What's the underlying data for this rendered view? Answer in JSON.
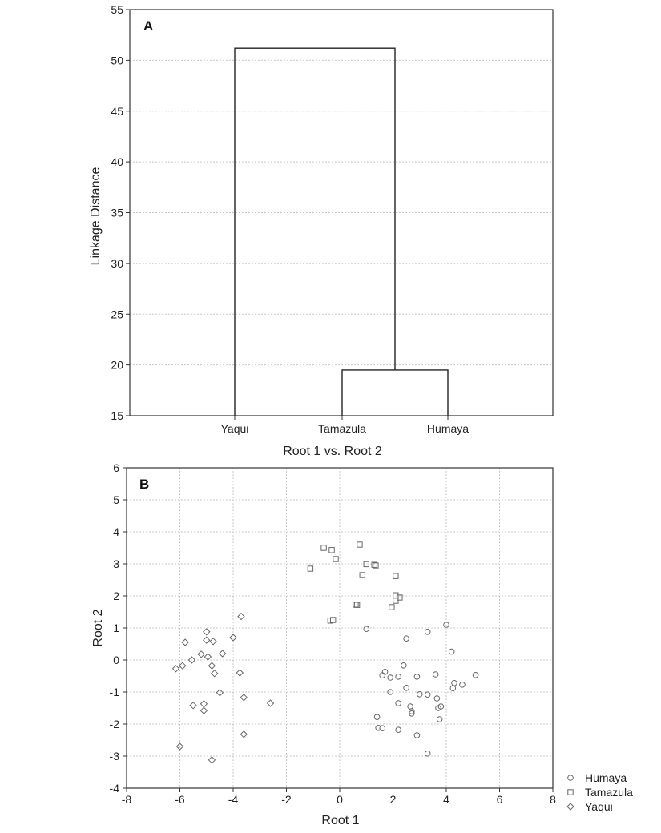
{
  "chart_data": [
    {
      "panel": "A",
      "type": "dendrogram",
      "ylabel": "Linkage Distance",
      "xlabel": "Root 1 vs. Root 2",
      "ylim": [
        15,
        55
      ],
      "yticks": [
        15,
        20,
        25,
        30,
        35,
        40,
        45,
        50,
        55
      ],
      "leaves": [
        "Yaqui",
        "Tamazula",
        "Humaya"
      ],
      "merges": [
        {
          "left": "Tamazula",
          "right": "Humaya",
          "height": 19.5
        },
        {
          "left": "Yaqui",
          "right": "Tamazula+Humaya",
          "height": 51.2
        }
      ],
      "grid": "horizontal dotted"
    },
    {
      "panel": "B",
      "type": "scatter",
      "xlabel": "Root 1",
      "ylabel": "Root 2",
      "xlim": [
        -8,
        8
      ],
      "ylim": [
        -4,
        6
      ],
      "xticks": [
        -8,
        -6,
        -4,
        -2,
        0,
        2,
        4,
        6,
        8
      ],
      "yticks": [
        -4,
        -3,
        -2,
        -1,
        0,
        1,
        2,
        3,
        4,
        5,
        6
      ],
      "grid": "dotted",
      "legend_position": "bottom-right outside",
      "series": [
        {
          "name": "Humaya",
          "marker": "circle",
          "points": [
            [
              1.0,
              0.97
            ],
            [
              2.5,
              0.67
            ],
            [
              3.3,
              0.88
            ],
            [
              4.0,
              1.1
            ],
            [
              4.2,
              0.26
            ],
            [
              1.6,
              -0.48
            ],
            [
              1.7,
              -0.37
            ],
            [
              1.9,
              -0.55
            ],
            [
              2.2,
              -0.52
            ],
            [
              2.4,
              -0.17
            ],
            [
              2.9,
              -0.52
            ],
            [
              3.6,
              -0.45
            ],
            [
              4.3,
              -0.72
            ],
            [
              4.6,
              -0.77
            ],
            [
              5.1,
              -0.47
            ],
            [
              1.9,
              -1.0
            ],
            [
              2.5,
              -0.87
            ],
            [
              3.0,
              -1.07
            ],
            [
              3.3,
              -1.08
            ],
            [
              4.25,
              -0.88
            ],
            [
              2.2,
              -1.35
            ],
            [
              2.65,
              -1.45
            ],
            [
              2.7,
              -1.6
            ],
            [
              2.7,
              -1.67
            ],
            [
              3.65,
              -1.2
            ],
            [
              3.7,
              -1.5
            ],
            [
              3.8,
              -1.45
            ],
            [
              3.75,
              -1.85
            ],
            [
              1.4,
              -1.78
            ],
            [
              1.45,
              -2.12
            ],
            [
              1.6,
              -2.13
            ],
            [
              2.2,
              -2.18
            ],
            [
              2.9,
              -2.35
            ],
            [
              3.3,
              -2.92
            ]
          ]
        },
        {
          "name": "Tamazula",
          "marker": "square",
          "points": [
            [
              0.75,
              3.6
            ],
            [
              -0.6,
              3.5
            ],
            [
              -0.3,
              3.43
            ],
            [
              -0.15,
              3.15
            ],
            [
              -1.1,
              2.85
            ],
            [
              1.0,
              2.99
            ],
            [
              1.3,
              2.97
            ],
            [
              1.35,
              2.95
            ],
            [
              0.85,
              2.65
            ],
            [
              2.1,
              2.62
            ],
            [
              2.1,
              2.02
            ],
            [
              2.25,
              1.95
            ],
            [
              2.1,
              1.85
            ],
            [
              1.95,
              1.65
            ],
            [
              0.6,
              1.73
            ],
            [
              0.65,
              1.72
            ],
            [
              -0.35,
              1.23
            ],
            [
              -0.25,
              1.25
            ]
          ]
        },
        {
          "name": "Yaqui",
          "marker": "diamond",
          "points": [
            [
              -3.7,
              1.36
            ],
            [
              -5.0,
              0.88
            ],
            [
              -4.0,
              0.7
            ],
            [
              -5.8,
              0.55
            ],
            [
              -5.0,
              0.62
            ],
            [
              -4.75,
              0.58
            ],
            [
              -5.2,
              0.18
            ],
            [
              -4.4,
              0.2
            ],
            [
              -4.95,
              0.1
            ],
            [
              -5.55,
              0.0
            ],
            [
              -5.9,
              -0.18
            ],
            [
              -6.15,
              -0.27
            ],
            [
              -4.8,
              -0.18
            ],
            [
              -4.7,
              -0.42
            ],
            [
              -3.75,
              -0.4
            ],
            [
              -4.5,
              -1.02
            ],
            [
              -3.6,
              -1.17
            ],
            [
              -2.6,
              -1.35
            ],
            [
              -5.1,
              -1.37
            ],
            [
              -5.5,
              -1.42
            ],
            [
              -5.1,
              -1.58
            ],
            [
              -3.6,
              -2.32
            ],
            [
              -6.0,
              -2.7
            ],
            [
              -4.8,
              -3.12
            ]
          ]
        }
      ]
    }
  ]
}
